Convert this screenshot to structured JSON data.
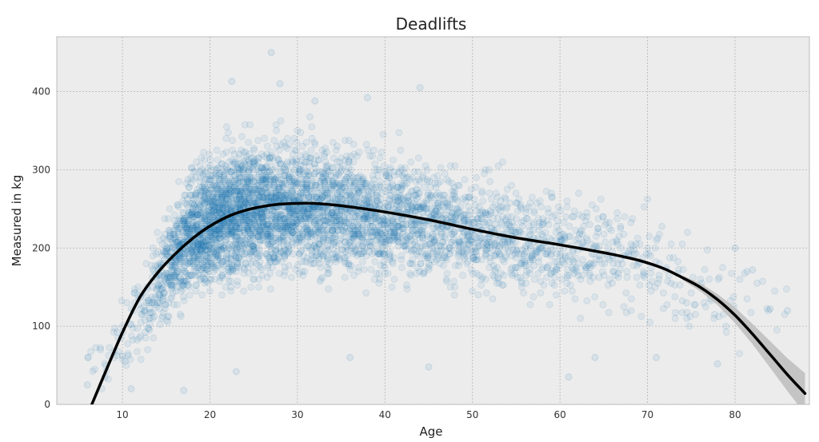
{
  "chart_data": {
    "type": "scatter",
    "title": "Deadlifts",
    "xlabel": "Age",
    "ylabel": "Measured in kg",
    "xlim": [
      2.5,
      88.5
    ],
    "ylim": [
      0,
      470
    ],
    "xticks": [
      10,
      20,
      30,
      40,
      50,
      60,
      70,
      80
    ],
    "yticks": [
      0,
      100,
      200,
      300,
      400
    ],
    "grid": true,
    "legend": "none",
    "colors": {
      "background": "#ececec",
      "grid": "#b3b3b3",
      "points": "#1f77b4",
      "fit_line": "#000000",
      "confidence_band": "#bdbdbd"
    },
    "scatter_summary": {
      "description_points": "dense cluster of semi-transparent blue points",
      "profile": [
        {
          "age": 6,
          "median": 40,
          "spread": 25,
          "weight": 0.2
        },
        {
          "age": 10,
          "median": 80,
          "spread": 30,
          "weight": 0.5
        },
        {
          "age": 13,
          "median": 130,
          "spread": 35,
          "weight": 1.5
        },
        {
          "age": 15,
          "median": 175,
          "spread": 40,
          "weight": 4
        },
        {
          "age": 17,
          "median": 205,
          "spread": 45,
          "weight": 7
        },
        {
          "age": 20,
          "median": 235,
          "spread": 50,
          "weight": 10
        },
        {
          "age": 23,
          "median": 245,
          "spread": 52,
          "weight": 10
        },
        {
          "age": 26,
          "median": 250,
          "spread": 52,
          "weight": 8.5
        },
        {
          "age": 30,
          "median": 252,
          "spread": 52,
          "weight": 7
        },
        {
          "age": 35,
          "median": 248,
          "spread": 50,
          "weight": 5.5
        },
        {
          "age": 40,
          "median": 240,
          "spread": 48,
          "weight": 4.5
        },
        {
          "age": 45,
          "median": 232,
          "spread": 46,
          "weight": 3.5
        },
        {
          "age": 50,
          "median": 222,
          "spread": 45,
          "weight": 2.8
        },
        {
          "age": 55,
          "median": 212,
          "spread": 44,
          "weight": 2.2
        },
        {
          "age": 60,
          "median": 202,
          "spread": 44,
          "weight": 1.6
        },
        {
          "age": 65,
          "median": 192,
          "spread": 44,
          "weight": 1.1
        },
        {
          "age": 70,
          "median": 178,
          "spread": 42,
          "weight": 0.7
        },
        {
          "age": 75,
          "median": 150,
          "spread": 40,
          "weight": 0.4
        },
        {
          "age": 80,
          "median": 130,
          "spread": 40,
          "weight": 0.2
        },
        {
          "age": 85,
          "median": 130,
          "spread": 30,
          "weight": 0.1
        }
      ],
      "outliers": [
        {
          "x": 27,
          "y": 450
        },
        {
          "x": 22.5,
          "y": 413
        },
        {
          "x": 28,
          "y": 410
        },
        {
          "x": 44,
          "y": 405
        },
        {
          "x": 38,
          "y": 392
        },
        {
          "x": 32,
          "y": 388
        },
        {
          "x": 10,
          "y": 62
        },
        {
          "x": 8,
          "y": 35
        },
        {
          "x": 6,
          "y": 25
        },
        {
          "x": 11,
          "y": 20
        },
        {
          "x": 17,
          "y": 18
        },
        {
          "x": 23,
          "y": 42
        },
        {
          "x": 36,
          "y": 60
        },
        {
          "x": 45,
          "y": 48
        },
        {
          "x": 61,
          "y": 35
        },
        {
          "x": 64,
          "y": 60
        },
        {
          "x": 71,
          "y": 60
        },
        {
          "x": 78,
          "y": 52
        },
        {
          "x": 80,
          "y": 200
        },
        {
          "x": 82,
          "y": 172
        },
        {
          "x": 84,
          "y": 122
        },
        {
          "x": 86,
          "y": 120
        }
      ]
    },
    "fit_line": {
      "x": [
        6.5,
        8,
        10,
        12,
        14,
        16,
        18,
        20,
        22,
        24,
        26,
        28,
        30,
        32,
        35,
        40,
        45,
        50,
        55,
        60,
        65,
        68,
        70,
        72,
        74,
        76,
        78,
        80,
        82,
        84,
        86,
        88
      ],
      "y": [
        0,
        40,
        92,
        137,
        168,
        192,
        212,
        228,
        240,
        248,
        253,
        256,
        257,
        257,
        254,
        246,
        236,
        224,
        213,
        204,
        194,
        187,
        181,
        173,
        162,
        150,
        134,
        114,
        90,
        64,
        38,
        14
      ]
    },
    "confidence_band": {
      "x": [
        74,
        76,
        78,
        80,
        82,
        84,
        86,
        88
      ],
      "lower": [
        159,
        145,
        127,
        104,
        77,
        47,
        17,
        -12
      ],
      "upper": [
        165,
        155,
        141,
        124,
        103,
        81,
        59,
        40
      ]
    }
  }
}
